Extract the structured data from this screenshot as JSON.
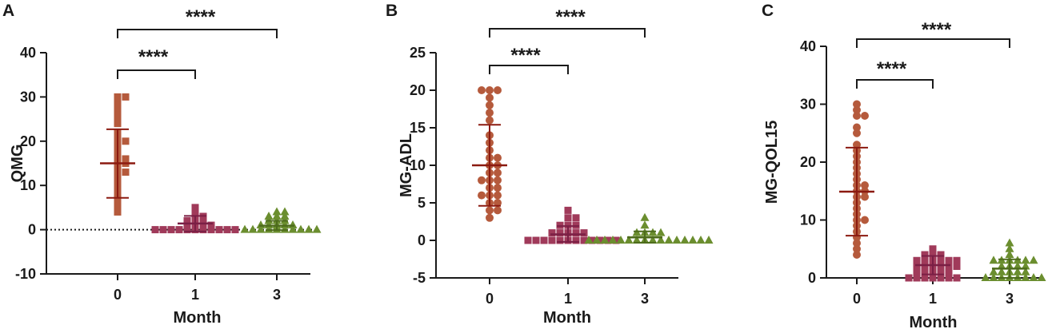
{
  "chart_data": [
    {
      "panel": "A",
      "type": "scatter",
      "ylabel": "QMG",
      "xlabel": "Month",
      "categories": [
        "0",
        "1",
        "3"
      ],
      "ylim": [
        -10,
        40
      ],
      "yticks": [
        "-10",
        "0",
        "10",
        "20",
        "30",
        "40"
      ],
      "zero_reference_line": true,
      "series": [
        {
          "name": "0",
          "marker": "square",
          "color": "#b55a3c",
          "mean": 15,
          "sd_low": 7.2,
          "sd_high": 22.7,
          "values": [
            30,
            30,
            29,
            28,
            27,
            26,
            25,
            24,
            22,
            21,
            20,
            20,
            19,
            18,
            17,
            16,
            16,
            15,
            15,
            14,
            13,
            13,
            12,
            11,
            10,
            9,
            8,
            7,
            6,
            5,
            4
          ]
        },
        {
          "name": "1",
          "marker": "square",
          "color": "#a03a5a",
          "mean": 1.4,
          "sd_low": -0.4,
          "sd_high": 3.1,
          "values": [
            5,
            4,
            3,
            3,
            2,
            2,
            2,
            1.5,
            1,
            1,
            1,
            1,
            0.5,
            0.5,
            0,
            0,
            0,
            0,
            0,
            0,
            0,
            0,
            0,
            0,
            0
          ]
        },
        {
          "name": "3",
          "marker": "triangle",
          "color": "#6b8e2f",
          "mean": 0.9,
          "sd_low": -0.1,
          "sd_high": 2,
          "values": [
            4,
            4,
            3,
            3,
            3,
            2,
            2,
            2,
            1,
            1,
            1,
            1,
            1,
            0.5,
            0,
            0,
            0,
            0,
            0,
            0,
            0,
            0,
            0,
            0
          ]
        }
      ],
      "significance": [
        {
          "from": "0",
          "to": "1",
          "label": "****"
        },
        {
          "from": "0",
          "to": "3",
          "label": "****"
        }
      ]
    },
    {
      "panel": "B",
      "type": "scatter",
      "ylabel": "MG-ADL",
      "xlabel": "Month",
      "categories": [
        "0",
        "1",
        "3"
      ],
      "ylim": [
        -5,
        25
      ],
      "yticks": [
        "-5",
        "0",
        "5",
        "10",
        "15",
        "20",
        "25"
      ],
      "zero_reference_line": false,
      "series": [
        {
          "name": "0",
          "marker": "circle",
          "color": "#b55a3c",
          "mean": 10,
          "sd_low": 4.6,
          "sd_high": 15.4,
          "values": [
            20,
            20,
            20,
            19,
            18,
            17,
            16,
            14,
            13,
            12,
            11,
            11,
            10,
            10,
            9,
            9,
            8,
            8,
            8,
            7,
            7,
            6,
            6,
            6,
            5,
            5,
            4,
            4,
            3
          ]
        },
        {
          "name": "1",
          "marker": "square",
          "color": "#a03a5a",
          "mean": 0.8,
          "sd_low": -0.2,
          "sd_high": 1.9,
          "values": [
            4,
            3,
            3,
            2,
            2,
            2,
            1,
            1,
            1,
            1,
            1,
            0,
            0,
            0,
            0,
            0,
            0,
            0,
            0,
            0,
            0,
            0,
            0
          ]
        },
        {
          "name": "3",
          "marker": "triangle",
          "color": "#6b8e2f",
          "mean": 0.4,
          "sd_low": -0.3,
          "sd_high": 1.2,
          "values": [
            3,
            2,
            1,
            1,
            1,
            1,
            0,
            0,
            0,
            0,
            0,
            0,
            0,
            0,
            0,
            0,
            0,
            0,
            0,
            0,
            0,
            0
          ]
        }
      ],
      "significance": [
        {
          "from": "0",
          "to": "1",
          "label": "****"
        },
        {
          "from": "0",
          "to": "3",
          "label": "****"
        }
      ]
    },
    {
      "panel": "C",
      "type": "scatter",
      "ylabel": "MG-QOL15",
      "xlabel": "Month",
      "categories": [
        "0",
        "1",
        "3"
      ],
      "ylim": [
        0,
        40
      ],
      "yticks": [
        "0",
        "10",
        "20",
        "30",
        "40"
      ],
      "zero_reference_line": false,
      "series": [
        {
          "name": "0",
          "marker": "circle",
          "color": "#b55a3c",
          "mean": 14.9,
          "sd_low": 7.3,
          "sd_high": 22.5,
          "values": [
            30,
            29,
            28,
            28,
            26,
            25,
            23,
            22,
            21,
            20,
            19,
            18,
            17,
            16,
            16,
            15,
            15,
            14,
            14,
            13,
            12,
            11,
            10,
            10,
            9,
            8,
            7,
            6,
            5,
            4
          ]
        },
        {
          "name": "1",
          "marker": "square",
          "color": "#a03a5a",
          "mean": 2.2,
          "sd_low": 0.6,
          "sd_high": 3.8,
          "values": [
            5,
            4,
            4,
            4,
            3,
            3,
            3,
            3,
            3,
            3,
            2,
            2,
            2,
            2,
            2,
            2,
            1,
            1,
            1,
            1,
            1,
            0,
            0,
            0,
            0,
            0,
            0,
            0
          ]
        },
        {
          "name": "3",
          "marker": "triangle",
          "color": "#6b8e2f",
          "mean": 1.6,
          "sd_low": 0,
          "sd_high": 3.2,
          "values": [
            6,
            5,
            4,
            3,
            3,
            3,
            3,
            3,
            3,
            2,
            2,
            2,
            2,
            1,
            1,
            1,
            1,
            1,
            0,
            0,
            0,
            0,
            0,
            0,
            0,
            0
          ]
        }
      ],
      "significance": [
        {
          "from": "0",
          "to": "1",
          "label": "****"
        },
        {
          "from": "0",
          "to": "3",
          "label": "****"
        }
      ]
    }
  ]
}
